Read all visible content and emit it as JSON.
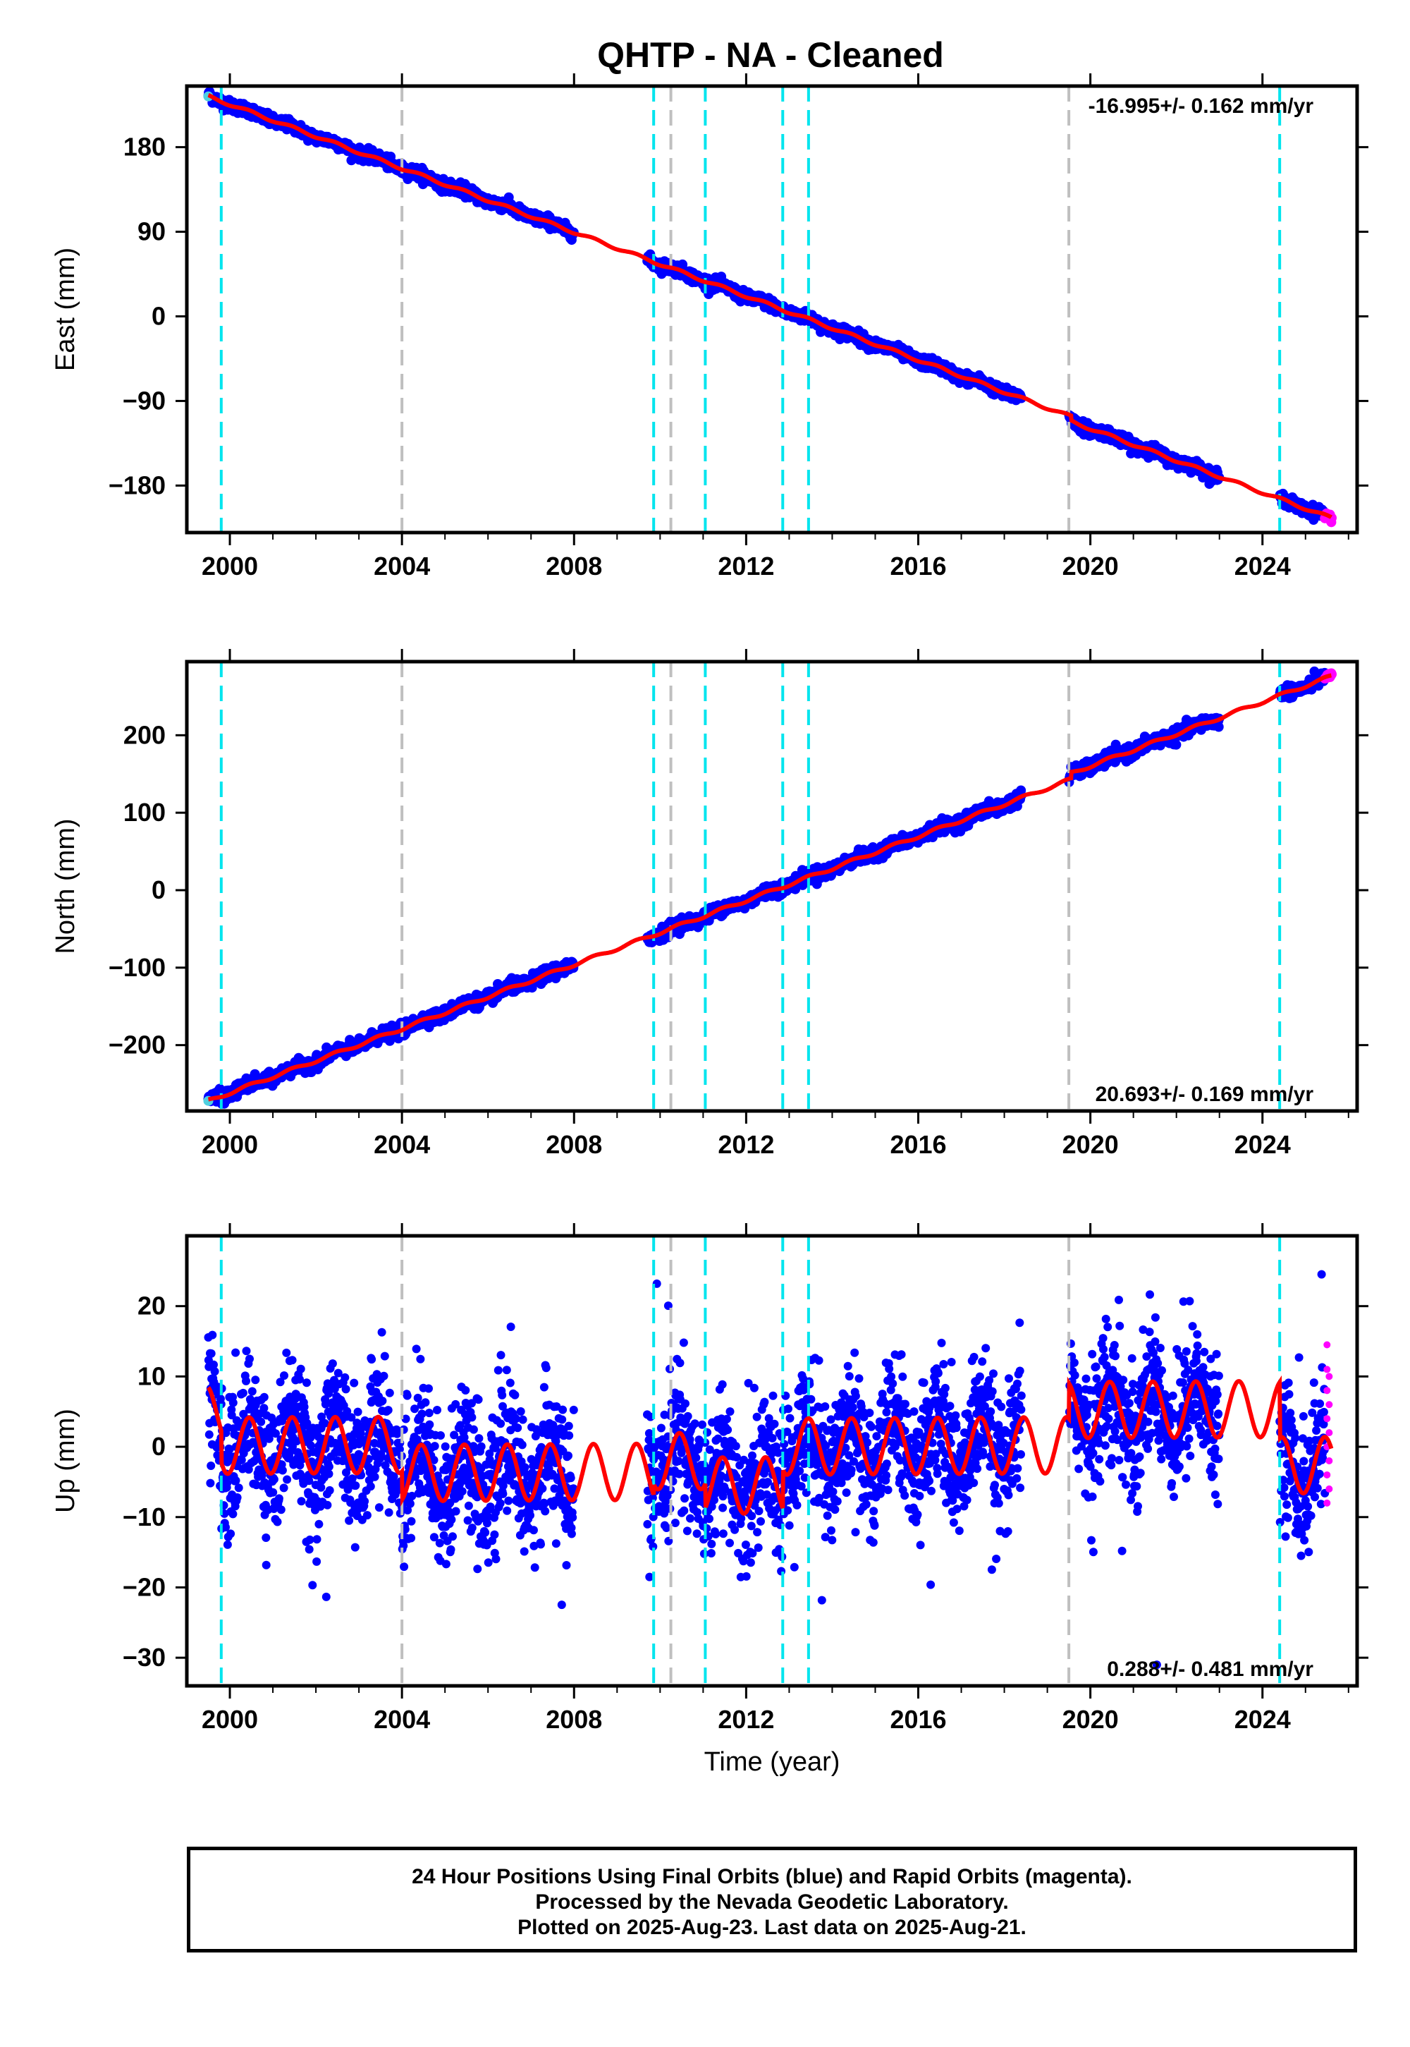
{
  "title": "QHTP  - NA - Cleaned",
  "footer": {
    "line1": "24 Hour Positions Using Final Orbits (blue) and Rapid Orbits (magenta).",
    "line2": "Processed by the Nevada Geodetic Laboratory.",
    "line3": "Plotted on 2025-Aug-23. Last data on 2025-Aug-21."
  },
  "colors": {
    "final_orbits": "#0000ff",
    "rapid_orbits": "#ff00ff",
    "model_fit": "#ff0000",
    "equipment_change": "#00e5ee",
    "earthquake": "#bfbfbf"
  },
  "chart_data": [
    {
      "type": "scatter",
      "component": "east",
      "ylabel": "East (mm)",
      "xlabel": "",
      "rate": "-16.995+/- 0.162 mm/yr",
      "xlim": [
        1999.0,
        2026.2
      ],
      "ylim": [
        -230,
        245
      ],
      "xticks": [
        2000,
        2004,
        2008,
        2012,
        2016,
        2020,
        2024
      ],
      "yticks": [
        180,
        90,
        0,
        -90,
        -180
      ],
      "ytick_labels": [
        "180",
        "90",
        "0",
        "−90",
        "−180"
      ],
      "start": [
        1999.5,
        234
      ],
      "end": [
        2025.6,
        -219
      ],
      "rate_value": -16.995,
      "offsets": [
        [
          2019.55,
          -5
        ]
      ],
      "annual_amplitude": 1.5,
      "noise": 3,
      "gaps": [
        [
          2008.0,
          2009.7
        ],
        [
          2018.4,
          2019.5
        ],
        [
          2023.0,
          2024.4
        ]
      ],
      "equipment_changes": [
        1999.8,
        2009.85,
        2011.05,
        2012.85,
        2013.45,
        2024.4
      ],
      "earthquakes": [
        2004.0,
        2010.25,
        2019.5
      ]
    },
    {
      "type": "scatter",
      "component": "north",
      "ylabel": "North (mm)",
      "xlabel": "",
      "rate": "20.693+/- 0.169 mm/yr",
      "xlim": [
        1999.0,
        2026.2
      ],
      "ylim": [
        -285,
        295
      ],
      "xticks": [
        2000,
        2004,
        2008,
        2012,
        2016,
        2020,
        2024
      ],
      "yticks": [
        200,
        100,
        0,
        -100,
        -200
      ],
      "ytick_labels": [
        "200",
        "100",
        "0",
        "−100",
        "−200"
      ],
      "start": [
        1999.5,
        -272
      ],
      "end": [
        2025.6,
        280
      ],
      "rate_value": 20.693,
      "offsets": [
        [
          2019.55,
          8
        ]
      ],
      "annual_amplitude": 2,
      "noise": 4,
      "gaps": [
        [
          2008.0,
          2009.7
        ],
        [
          2018.4,
          2019.5
        ],
        [
          2023.0,
          2024.4
        ]
      ],
      "equipment_changes": [
        1999.8,
        2009.85,
        2011.05,
        2012.85,
        2013.45,
        2024.4
      ],
      "earthquakes": [
        2004.0,
        2010.25,
        2019.5
      ]
    },
    {
      "type": "scatter",
      "component": "up",
      "ylabel": "Up (mm)",
      "xlabel": "Time (year)",
      "rate": "0.288+/- 0.481 mm/yr",
      "xlim": [
        1999.0,
        2026.2
      ],
      "ylim": [
        -34,
        30
      ],
      "xticks": [
        2000,
        2004,
        2008,
        2012,
        2016,
        2020,
        2024
      ],
      "yticks": [
        20,
        10,
        0,
        -10,
        -20,
        -30
      ],
      "ytick_labels": [
        "20",
        "10",
        "0",
        "−10",
        "−20",
        "−30"
      ],
      "rate_value": 0.288,
      "annual_amplitude": 4,
      "noise": 4.5,
      "segments": [
        {
          "from": 1999.5,
          "to": 1999.8,
          "offset": 5
        },
        {
          "from": 1999.8,
          "to": 2004.0,
          "offset": 0.5
        },
        {
          "from": 2004.0,
          "to": 2009.85,
          "offset": -3.5
        },
        {
          "from": 2009.85,
          "to": 2011.05,
          "offset": -2
        },
        {
          "from": 2011.05,
          "to": 2012.85,
          "offset": -5.5
        },
        {
          "from": 2012.85,
          "to": 2019.5,
          "offset": 0
        },
        {
          "from": 2019.5,
          "to": 2024.4,
          "offset": 5
        },
        {
          "from": 2024.4,
          "to": 2025.6,
          "offset": -3
        }
      ],
      "gaps": [
        [
          2008.0,
          2009.7
        ],
        [
          2018.4,
          2019.5
        ],
        [
          2023.0,
          2024.4
        ]
      ],
      "rapid_points": [
        [
          2025.5,
          14.5
        ],
        [
          2025.5,
          11
        ],
        [
          2025.55,
          10
        ],
        [
          2025.5,
          8
        ],
        [
          2025.55,
          6
        ],
        [
          2025.5,
          4
        ],
        [
          2025.55,
          2
        ],
        [
          2025.5,
          0
        ],
        [
          2025.55,
          -2
        ],
        [
          2025.5,
          -4
        ],
        [
          2025.55,
          -6
        ],
        [
          2025.5,
          -8
        ]
      ],
      "equipment_changes": [
        1999.8,
        2009.85,
        2011.05,
        2012.85,
        2013.45,
        2024.4
      ],
      "earthquakes": [
        2004.0,
        2010.25,
        2019.5
      ]
    }
  ]
}
